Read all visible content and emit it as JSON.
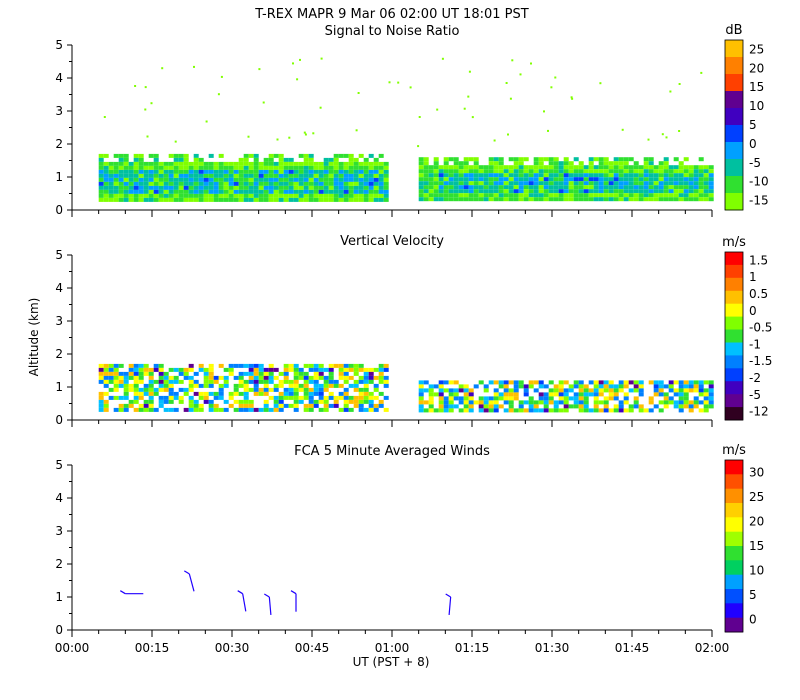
{
  "header": {
    "line1": "T-REX   MAPR   9 Mar 06   02:00 UT   18:01   PST"
  },
  "shared": {
    "x_ticks": [
      "00:00",
      "00:15",
      "00:30",
      "00:45",
      "01:00",
      "01:15",
      "01:30",
      "01:45",
      "02:00"
    ],
    "x_label": "UT  (PST + 8)",
    "y_label": "Altitude (km)",
    "y_ticks": [
      "0",
      "1",
      "2",
      "3",
      "4",
      "5"
    ]
  },
  "colors": {
    "snr": [
      "#80ff00",
      "#30e030",
      "#00c0a0",
      "#00a0ff",
      "#0040ff",
      "#4000c0",
      "#600090",
      "#ff4000",
      "#ff8000",
      "#ffc000"
    ],
    "vv": [
      "#300020",
      "#600090",
      "#4000c0",
      "#0040ff",
      "#0080ff",
      "#00c0ff",
      "#30e030",
      "#80ff00",
      "#ffff00",
      "#ffc000",
      "#ff8000",
      "#ff4000",
      "#ff0000"
    ],
    "wind": [
      "#600090",
      "#2000ff",
      "#0050ff",
      "#00a0ff",
      "#00d060",
      "#30e030",
      "#a0ff00",
      "#ffff00",
      "#ffd000",
      "#ff9000",
      "#ff5000",
      "#ff0000"
    ]
  },
  "chart_data": [
    {
      "type": "heatmap",
      "title": "Signal to Noise Ratio",
      "ylabel": "Altitude (km)",
      "xlabel": "",
      "ylim": [
        0,
        5
      ],
      "xlim_minutes": [
        0,
        120
      ],
      "colorbar": {
        "unit": "dB",
        "labels": [
          "25",
          "20",
          "15",
          "10",
          "5",
          "0",
          "-5",
          "-10",
          "-15"
        ]
      },
      "regions": [
        {
          "time_start": "00:05",
          "time_end": "00:59",
          "alt_bottom_km": 0.3,
          "alt_top_km": 1.7
        },
        {
          "time_start": "01:05",
          "time_end": "02:00",
          "alt_bottom_km": 0.3,
          "alt_top_km": 1.6
        }
      ]
    },
    {
      "type": "heatmap",
      "title": "Vertical Velocity",
      "ylabel": "Altitude (km)",
      "xlabel": "",
      "ylim": [
        0,
        5
      ],
      "xlim_minutes": [
        0,
        120
      ],
      "colorbar": {
        "unit": "m/s",
        "labels": [
          "1.5",
          "1",
          "0.5",
          "0",
          "-0.5",
          "-1",
          "-1.5",
          "-2",
          "-5",
          "-12"
        ]
      },
      "regions": [
        {
          "time_start": "00:05",
          "time_end": "00:59",
          "alt_bottom_km": 0.3,
          "alt_top_km": 1.7
        },
        {
          "time_start": "01:05",
          "time_end": "02:00",
          "alt_bottom_km": 0.3,
          "alt_top_km": 1.2
        }
      ]
    },
    {
      "type": "scatter",
      "title": "FCA 5 Minute Averaged Winds",
      "ylabel": "Altitude (km)",
      "xlabel": "UT  (PST + 8)",
      "ylim": [
        0,
        5
      ],
      "xlim_minutes": [
        0,
        120
      ],
      "colorbar": {
        "unit": "m/s",
        "labels": [
          "30",
          "25",
          "20",
          "15",
          "10",
          "5",
          "0"
        ]
      },
      "barbs": [
        {
          "time": "00:10",
          "alt_km": 1.1
        },
        {
          "time": "00:22",
          "alt_km": 1.7
        },
        {
          "time": "00:32",
          "alt_km": 1.1
        },
        {
          "time": "00:37",
          "alt_km": 1.0
        },
        {
          "time": "00:42",
          "alt_km": 1.1
        },
        {
          "time": "01:11",
          "alt_km": 1.0
        }
      ]
    }
  ]
}
